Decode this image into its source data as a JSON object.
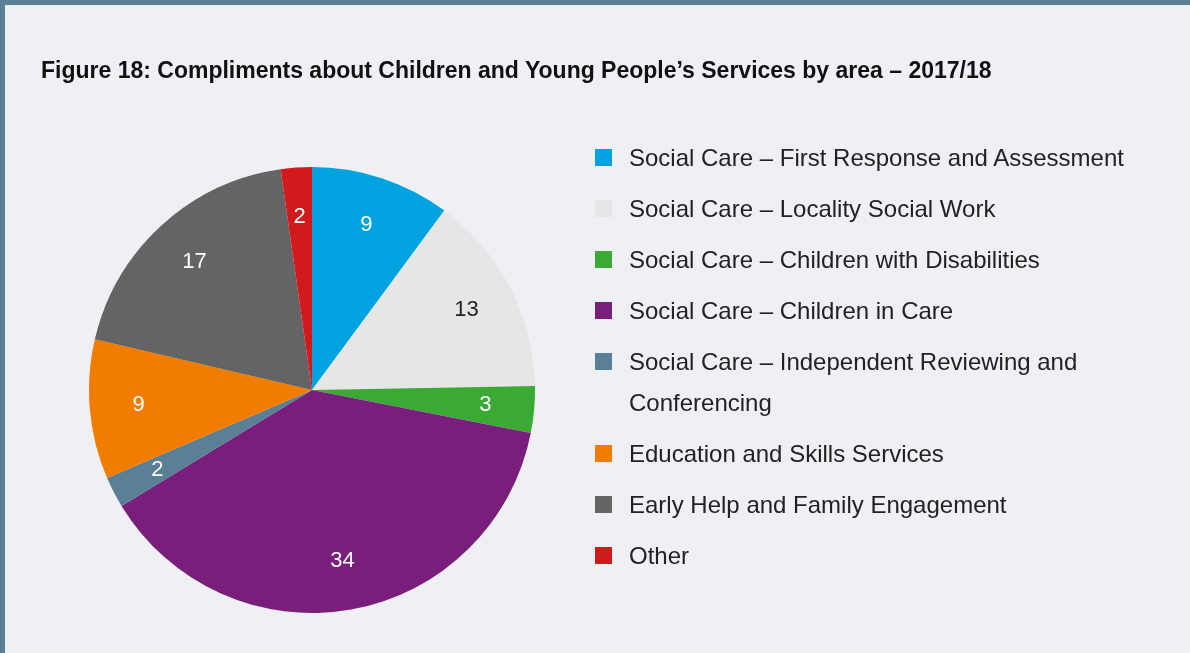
{
  "chart_data": {
    "type": "pie",
    "title": "Figure 18: Compliments about Children and Young People’s Services by area – 2017/18",
    "categories": [
      "Social Care – First Response and Assessment",
      "Social Care – Locality Social Work",
      "Social Care – Children with Disabilities",
      "Social Care – Children in Care",
      "Social Care – Independent Reviewing and Conferencing",
      "Education and Skills Services",
      "Early Help and Family Engagement",
      "Other"
    ],
    "values": [
      9,
      13,
      3,
      34,
      2,
      9,
      17,
      2
    ],
    "colors": [
      "#00a3e0",
      "#e6e6e6",
      "#3aaa35",
      "#7a1e7b",
      "#5b7f95",
      "#f07d00",
      "#646464",
      "#d2191c"
    ],
    "data_labels": true,
    "legend": "right"
  }
}
